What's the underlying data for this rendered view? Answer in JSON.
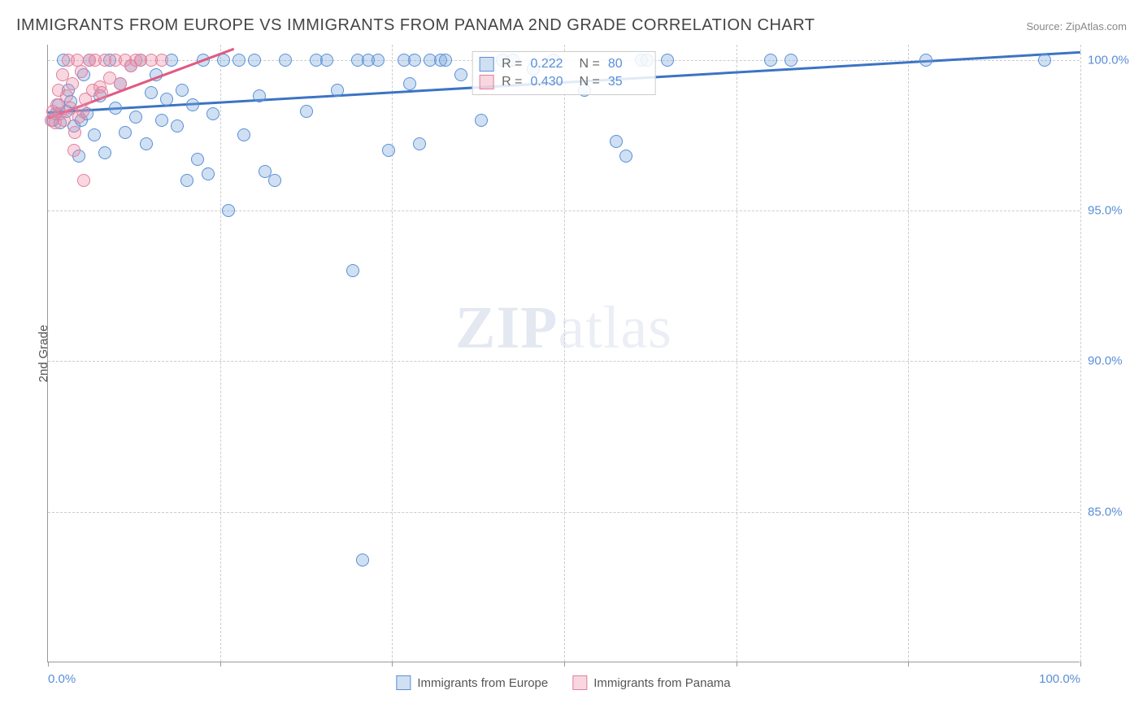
{
  "header": {
    "title": "IMMIGRANTS FROM EUROPE VS IMMIGRANTS FROM PANAMA 2ND GRADE CORRELATION CHART",
    "source_prefix": "Source: ",
    "source_link": "ZipAtlas.com"
  },
  "watermark": {
    "zip": "ZIP",
    "atlas": "atlas"
  },
  "chart": {
    "type": "scatter",
    "background_color": "#ffffff",
    "grid_color": "#cccccc",
    "axis_color": "#999999",
    "label_color": "#555555",
    "tick_color": "#5a8fd6",
    "tick_fontsize": 15,
    "y_axis_label": "2nd Grade",
    "xlim": [
      0,
      100
    ],
    "ylim": [
      80,
      100.5
    ],
    "x_ticks": [
      {
        "pos": 0.0,
        "label": "0.0%"
      },
      {
        "pos": 100.0,
        "label": "100.0%"
      }
    ],
    "x_grid_positions": [
      16.7,
      33.3,
      50.0,
      66.7,
      83.3,
      100.0
    ],
    "y_ticks": [
      {
        "pos": 85.0,
        "label": "85.0%"
      },
      {
        "pos": 90.0,
        "label": "90.0%"
      },
      {
        "pos": 95.0,
        "label": "95.0%"
      },
      {
        "pos": 100.0,
        "label": "100.0%"
      }
    ],
    "marker_radius": 8,
    "marker_border_width": 1.5,
    "series": [
      {
        "id": "europe",
        "label": "Immigrants from Europe",
        "fill_color": "rgba(120,165,220,0.35)",
        "stroke_color": "#5a8fd6",
        "line_color": "#3b74c4",
        "line_width": 2.5,
        "R": "0.222",
        "N": "80",
        "trend": {
          "x1": 0,
          "y1": 98.3,
          "x2": 100,
          "y2": 100.3
        },
        "points": [
          [
            0.5,
            98.0
          ],
          [
            0.8,
            98.2
          ],
          [
            1.0,
            98.5
          ],
          [
            1.2,
            97.9
          ],
          [
            1.5,
            100.0
          ],
          [
            1.8,
            98.3
          ],
          [
            2.0,
            99.0
          ],
          [
            2.2,
            98.6
          ],
          [
            2.5,
            97.8
          ],
          [
            3.0,
            96.8
          ],
          [
            3.2,
            98.0
          ],
          [
            3.5,
            99.5
          ],
          [
            3.8,
            98.2
          ],
          [
            4.0,
            100.0
          ],
          [
            4.5,
            97.5
          ],
          [
            5.0,
            98.8
          ],
          [
            5.5,
            96.9
          ],
          [
            6.0,
            100.0
          ],
          [
            6.5,
            98.4
          ],
          [
            7.0,
            99.2
          ],
          [
            7.5,
            97.6
          ],
          [
            8.0,
            99.8
          ],
          [
            8.5,
            98.1
          ],
          [
            9.0,
            100.0
          ],
          [
            9.5,
            97.2
          ],
          [
            10.0,
            98.9
          ],
          [
            10.5,
            99.5
          ],
          [
            11.0,
            98.0
          ],
          [
            11.5,
            98.7
          ],
          [
            12.0,
            100.0
          ],
          [
            12.5,
            97.8
          ],
          [
            13.0,
            99.0
          ],
          [
            13.5,
            96.0
          ],
          [
            14.0,
            98.5
          ],
          [
            14.5,
            96.7
          ],
          [
            15.0,
            100.0
          ],
          [
            15.5,
            96.2
          ],
          [
            16.0,
            98.2
          ],
          [
            17.0,
            100.0
          ],
          [
            17.5,
            95.0
          ],
          [
            18.5,
            100.0
          ],
          [
            19.0,
            97.5
          ],
          [
            20.0,
            100.0
          ],
          [
            20.5,
            98.8
          ],
          [
            21.0,
            96.3
          ],
          [
            22.0,
            96.0
          ],
          [
            23.0,
            100.0
          ],
          [
            25.0,
            98.3
          ],
          [
            26.0,
            100.0
          ],
          [
            27.0,
            100.0
          ],
          [
            28.0,
            99.0
          ],
          [
            29.5,
            93.0
          ],
          [
            30.0,
            100.0
          ],
          [
            30.5,
            83.4
          ],
          [
            31.0,
            100.0
          ],
          [
            32.0,
            100.0
          ],
          [
            33.0,
            97.0
          ],
          [
            34.5,
            100.0
          ],
          [
            35.0,
            99.2
          ],
          [
            35.5,
            100.0
          ],
          [
            36.0,
            97.2
          ],
          [
            37.0,
            100.0
          ],
          [
            38.0,
            100.0
          ],
          [
            40.0,
            99.5
          ],
          [
            42.0,
            98.0
          ],
          [
            44.0,
            100.0
          ],
          [
            45.0,
            100.0
          ],
          [
            47.0,
            99.7
          ],
          [
            49.0,
            100.0
          ],
          [
            52.0,
            99.0
          ],
          [
            55.0,
            97.3
          ],
          [
            56.0,
            96.8
          ],
          [
            57.5,
            100.0
          ],
          [
            58.0,
            100.0
          ],
          [
            60.0,
            100.0
          ],
          [
            70.0,
            100.0
          ],
          [
            72.0,
            100.0
          ],
          [
            85.0,
            100.0
          ],
          [
            96.5,
            100.0
          ],
          [
            38.5,
            100.0
          ]
        ]
      },
      {
        "id": "panama",
        "label": "Immigrants from Panama",
        "fill_color": "rgba(235,140,165,0.35)",
        "stroke_color": "#e37f9b",
        "line_color": "#e05a82",
        "line_width": 2.5,
        "R": "0.430",
        "N": "35",
        "trend": {
          "x1": 0,
          "y1": 98.1,
          "x2": 18,
          "y2": 100.4
        },
        "points": [
          [
            0.3,
            98.0
          ],
          [
            0.5,
            98.3
          ],
          [
            0.7,
            97.9
          ],
          [
            0.9,
            98.5
          ],
          [
            1.0,
            99.0
          ],
          [
            1.2,
            98.2
          ],
          [
            1.4,
            99.5
          ],
          [
            1.6,
            98.0
          ],
          [
            1.8,
            98.8
          ],
          [
            2.0,
            100.0
          ],
          [
            2.2,
            98.4
          ],
          [
            2.4,
            99.2
          ],
          [
            2.6,
            97.6
          ],
          [
            2.8,
            100.0
          ],
          [
            3.0,
            98.1
          ],
          [
            3.2,
            99.6
          ],
          [
            3.4,
            98.3
          ],
          [
            3.5,
            96.0
          ],
          [
            3.6,
            98.7
          ],
          [
            4.0,
            100.0
          ],
          [
            4.3,
            99.0
          ],
          [
            4.6,
            100.0
          ],
          [
            5.0,
            99.1
          ],
          [
            5.2,
            98.9
          ],
          [
            5.5,
            100.0
          ],
          [
            6.0,
            99.4
          ],
          [
            6.5,
            100.0
          ],
          [
            7.0,
            99.2
          ],
          [
            7.5,
            100.0
          ],
          [
            8.0,
            99.8
          ],
          [
            8.5,
            100.0
          ],
          [
            9.0,
            100.0
          ],
          [
            10.0,
            100.0
          ],
          [
            11.0,
            100.0
          ],
          [
            2.5,
            97.0
          ]
        ]
      }
    ],
    "stats_box": {
      "r_label": "R =",
      "n_label": "N ="
    },
    "legend": {
      "position": "bottom-center"
    }
  }
}
